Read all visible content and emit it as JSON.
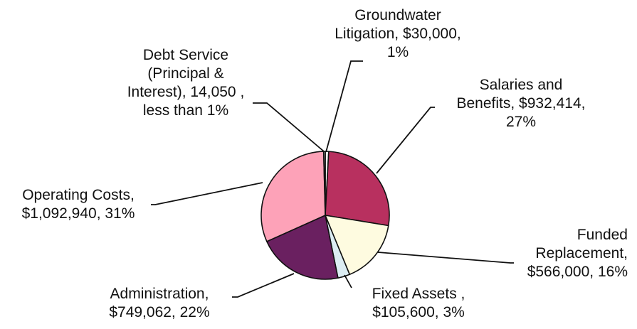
{
  "chart_data": {
    "type": "pie",
    "title": "",
    "slices": [
      {
        "name": "Groundwater Litigation",
        "value": 30000,
        "label_lines": [
          "Groundwater",
          "Litigation, $30,000,",
          "1%"
        ],
        "color": "#ffffff"
      },
      {
        "name": "Salaries and Benefits",
        "value": 932414,
        "label_lines": [
          "Salaries and",
          "Benefits, $932,414,",
          "27%"
        ],
        "color": "#b8305f"
      },
      {
        "name": "Funded Replacement",
        "value": 566000,
        "label_lines": [
          "Funded",
          "Replacement,",
          "$566,000, 16%"
        ],
        "color": "#fefbe0"
      },
      {
        "name": "Fixed Assets",
        "value": 105600,
        "label_lines": [
          "Fixed Assets ,",
          "$105,600, 3%"
        ],
        "color": "#dcedf3"
      },
      {
        "name": "Administration",
        "value": 749062,
        "label_lines": [
          "Administration,",
          "$749,062, 22%"
        ],
        "color": "#6a2060"
      },
      {
        "name": "Operating Costs",
        "value": 1092940,
        "label_lines": [
          "Operating Costs,",
          "$1,092,940, 31%"
        ],
        "color": "#fda2b8"
      },
      {
        "name": "Debt Service (Principal & Interest)",
        "value": 14050,
        "label_lines": [
          "Debt Service",
          "(Principal &",
          "Interest), 14,050 ,",
          "less than 1%"
        ],
        "color": "#d4d0c8"
      }
    ]
  }
}
